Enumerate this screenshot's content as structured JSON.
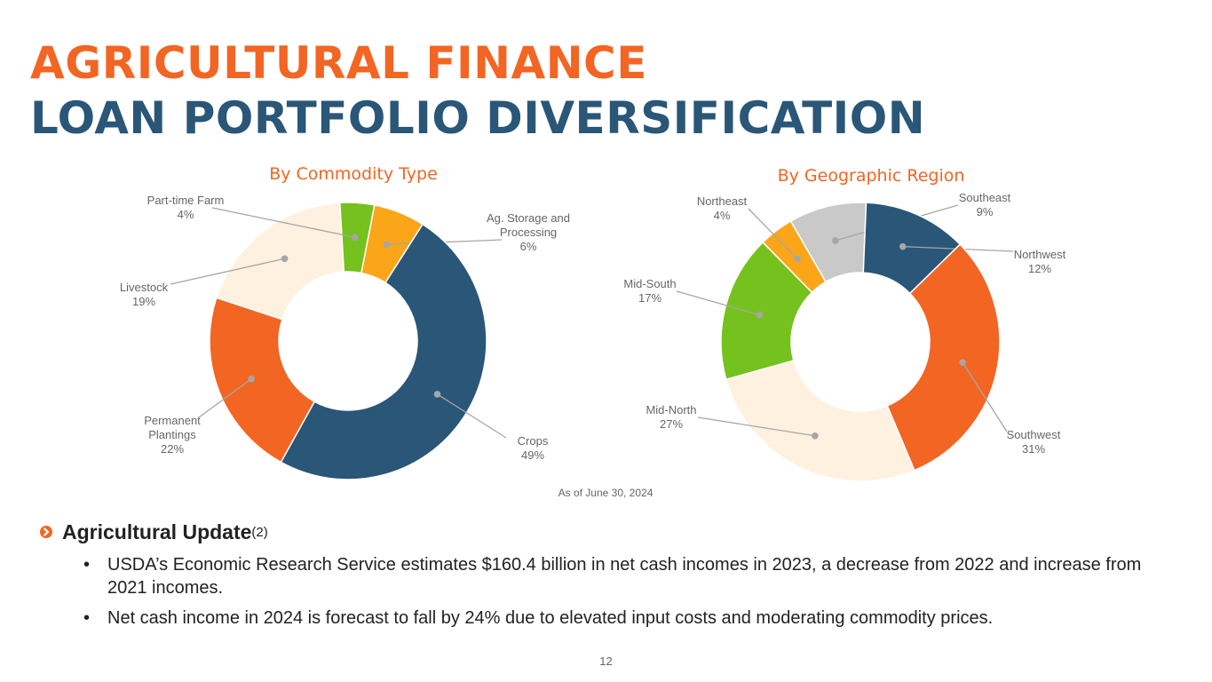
{
  "header": {
    "title_line1": "AGRICULTURAL FINANCE",
    "title_line2": "LOAN PORTFOLIO DIVERSIFICATION",
    "title_line1_color": "#F26522",
    "title_line2_color": "#2A5677"
  },
  "chart_data": [
    {
      "type": "pie",
      "title": "By Commodity Type",
      "slices": [
        {
          "label": "Ag. Storage and Processing",
          "value": 6,
          "display": "6%",
          "color": "#FBA619"
        },
        {
          "label": "Crops",
          "value": 49,
          "display": "49%",
          "color": "#2A5677"
        },
        {
          "label": "Permanent Plantings",
          "value": 22,
          "display": "22%",
          "color": "#F26522"
        },
        {
          "label": "Livestock",
          "value": 19,
          "display": "19%",
          "color": "#FEF1DF"
        },
        {
          "label": "Part-time Farm",
          "value": 4,
          "display": "4%",
          "color": "#75C11E"
        }
      ]
    },
    {
      "type": "pie",
      "title": "By Geographic Region",
      "slices": [
        {
          "label": "Southeast",
          "value": 9,
          "display": "9%",
          "color": "#C9C9C9"
        },
        {
          "label": "Northwest",
          "value": 12,
          "display": "12%",
          "color": "#2A5677"
        },
        {
          "label": "Southwest",
          "value": 31,
          "display": "31%",
          "color": "#F26522"
        },
        {
          "label": "Mid-North",
          "value": 27,
          "display": "27%",
          "color": "#FEF1DF"
        },
        {
          "label": "Mid-South",
          "value": 17,
          "display": "17%",
          "color": "#75C11E"
        },
        {
          "label": "Northeast",
          "value": 4,
          "display": "4%",
          "color": "#FBA619"
        }
      ]
    }
  ],
  "as_of": "As of June 30, 2024",
  "update": {
    "heading": "Agricultural Update",
    "footnote": "(2)",
    "items": [
      "USDA’s Economic Research Service estimates $160.4 billion in net cash incomes in 2023, a decrease from 2022 and increase from 2021 incomes.",
      "Net cash income in 2024 is forecast to fall by 24% due to elevated input costs and moderating commodity prices."
    ]
  },
  "page_number": "12",
  "colors": {
    "chart_title": "#F26522",
    "label_text": "#666666",
    "leader_line": "#A6A6A6",
    "bullet_icon": "#F26522"
  }
}
